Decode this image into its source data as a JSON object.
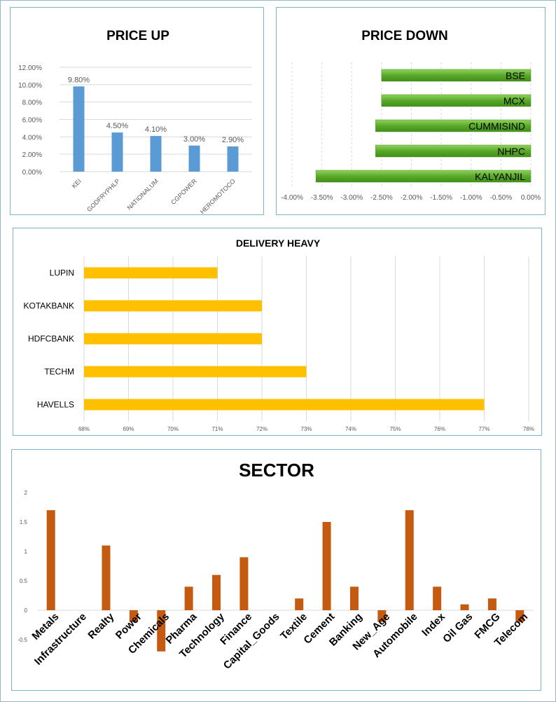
{
  "colors": {
    "price_up_bar": "#5b9bd5",
    "price_down_bar": "#62b032",
    "delivery_bar": "#ffc000",
    "sector_bar": "#c55a11",
    "grid": "#d9d9d9",
    "panel_border": "#7fb3c9"
  },
  "chart_data": [
    {
      "id": "price_up",
      "type": "bar",
      "title": "PRICE UP",
      "categories": [
        "KEI",
        "GODFRYPHLP",
        "NATIONALUM",
        "CGPOWER",
        "HEROMOTOCO"
      ],
      "values": [
        9.8,
        4.5,
        4.1,
        3.0,
        2.9
      ],
      "data_labels": [
        "9.80%",
        "4.50%",
        "4.10%",
        "3.00%",
        "2.90%"
      ],
      "y_ticks": [
        "0.00%",
        "2.00%",
        "4.00%",
        "6.00%",
        "8.00%",
        "10.00%",
        "12.00%"
      ],
      "ylim": [
        0,
        12
      ],
      "grid": true
    },
    {
      "id": "price_down",
      "type": "bar",
      "orientation": "horizontal",
      "title": "PRICE DOWN",
      "categories": [
        "BSE",
        "MCX",
        "CUMMISIND",
        "NHPC",
        "KALYANJIL"
      ],
      "values": [
        -2.5,
        -2.5,
        -2.6,
        -2.6,
        -3.6
      ],
      "x_ticks": [
        "-4.00%",
        "-3.50%",
        "-3.00%",
        "-2.50%",
        "-2.00%",
        "-1.50%",
        "-1.00%",
        "-0.50%",
        "0.00%"
      ],
      "xlim": [
        -4,
        0
      ],
      "grid": true
    },
    {
      "id": "delivery_heavy",
      "type": "bar",
      "orientation": "horizontal",
      "title": "DELIVERY HEAVY",
      "categories": [
        "LUPIN",
        "KOTAKBANK",
        "HDFCBANK",
        "TECHM",
        "HAVELLS"
      ],
      "values": [
        71,
        72,
        72,
        73,
        77
      ],
      "x_ticks": [
        "68%",
        "69%",
        "70%",
        "71%",
        "72%",
        "73%",
        "74%",
        "75%",
        "76%",
        "77%",
        "78%"
      ],
      "xlim": [
        68,
        78
      ],
      "grid": true
    },
    {
      "id": "sector",
      "type": "bar",
      "title": "SECTOR",
      "categories": [
        "Metals",
        "Infrastructure",
        "Realty",
        "Power",
        "Chemicals",
        "Pharma",
        "Technology",
        "Finance",
        "Capital_Goods",
        "Textile",
        "Cement",
        "Banking",
        "New_Age",
        "Automobile",
        "Index",
        "Oil Gas",
        "FMCG",
        "Telecom"
      ],
      "values": [
        1.7,
        0,
        1.1,
        -0.2,
        -0.7,
        0.4,
        0.6,
        0.9,
        0,
        0.2,
        1.5,
        0.4,
        -0.2,
        1.7,
        0.4,
        0.1,
        0.2,
        -0.2
      ],
      "y_ticks": [
        "-0.5",
        "0",
        "0.5",
        "1",
        "1.5",
        "2"
      ],
      "ylim": [
        -0.5,
        2
      ],
      "grid": false
    }
  ]
}
